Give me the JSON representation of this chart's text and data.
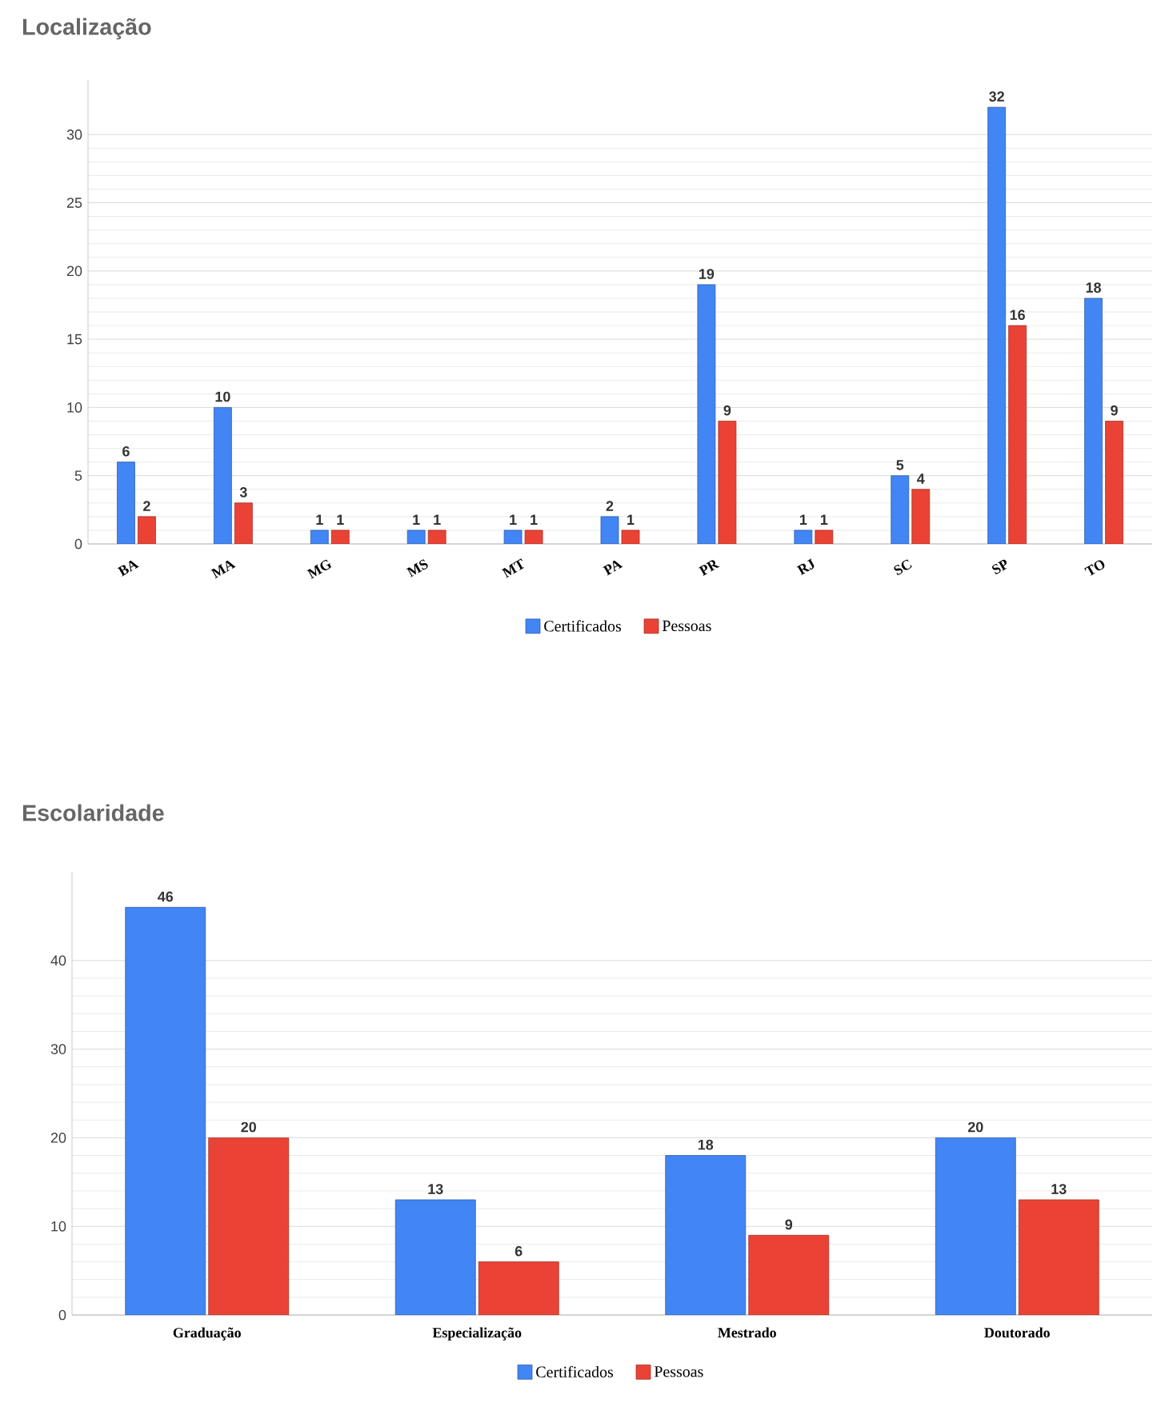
{
  "chart_data": [
    {
      "type": "bar",
      "title": "Localização",
      "categories": [
        "BA",
        "MA",
        "MG",
        "MS",
        "MT",
        "PA",
        "PR",
        "RJ",
        "SC",
        "SP",
        "TO"
      ],
      "series": [
        {
          "name": "Certificados",
          "color": "#4285f4",
          "values": [
            6,
            10,
            1,
            1,
            1,
            2,
            19,
            1,
            5,
            32,
            18
          ]
        },
        {
          "name": "Pessoas",
          "color": "#ea4335",
          "values": [
            2,
            3,
            1,
            1,
            1,
            1,
            9,
            1,
            4,
            16,
            9
          ]
        }
      ],
      "ylim": [
        0,
        34
      ],
      "yticks": [
        0,
        5,
        10,
        15,
        20,
        25,
        30
      ],
      "grid": "y",
      "legend": "bottom",
      "data_labels": true
    },
    {
      "type": "bar",
      "title": "Escolaridade",
      "categories": [
        "Graduação",
        "Especialização",
        "Mestrado",
        "Doutorado"
      ],
      "series": [
        {
          "name": "Certificados",
          "color": "#4285f4",
          "values": [
            46,
            13,
            18,
            20
          ]
        },
        {
          "name": "Pessoas",
          "color": "#ea4335",
          "values": [
            20,
            6,
            9,
            13
          ]
        }
      ],
      "ylim": [
        0,
        50
      ],
      "yticks": [
        0,
        10,
        20,
        30,
        40
      ],
      "grid": "y",
      "legend": "bottom",
      "data_labels": true
    }
  ]
}
